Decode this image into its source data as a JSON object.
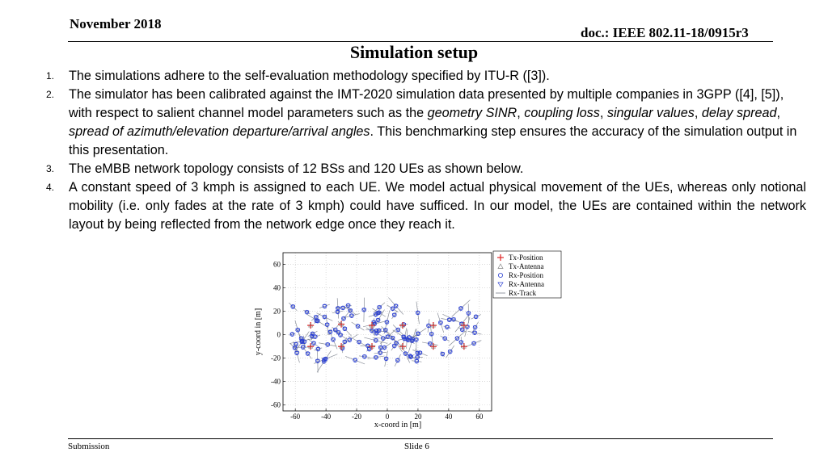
{
  "header": {
    "date": "November 2018",
    "doc_id": "doc.: IEEE 802.11-18/0915r3"
  },
  "title": "Simulation setup",
  "items": [
    {
      "num": "1.",
      "segments": [
        {
          "text": "The simulations adhere to the self-evaluation methodology specified by ITU-R ([3]).",
          "italic": false
        }
      ]
    },
    {
      "num": "2.",
      "segments": [
        {
          "text": "The simulator has been calibrated against the IMT-2020 simulation data presented by multiple companies in 3GPP ([4], [5]), with respect to salient channel model parameters such as the ",
          "italic": false
        },
        {
          "text": "geometry SINR",
          "italic": true
        },
        {
          "text": ", ",
          "italic": false
        },
        {
          "text": "coupling loss",
          "italic": true
        },
        {
          "text": ", ",
          "italic": false
        },
        {
          "text": "singular values",
          "italic": true
        },
        {
          "text": ", ",
          "italic": false
        },
        {
          "text": "delay spread",
          "italic": true
        },
        {
          "text": ", ",
          "italic": false
        },
        {
          "text": "spread of azimuth/elevation departure/arrival angles",
          "italic": true
        },
        {
          "text": ". This benchmarking step ensures the accuracy of the simulation output in this presentation.",
          "italic": false
        }
      ]
    },
    {
      "num": "3.",
      "segments": [
        {
          "text": "The eMBB network topology consists of 12 BSs and 120 UEs as shown below.",
          "italic": false
        }
      ]
    },
    {
      "num": "4.",
      "segments": [
        {
          "text": "A constant speed of 3 kmph is assigned to each UE. We model actual physical movement of the UEs, whereas only notional mobility (i.e. only fades at the rate of 3 kmph) could have sufficed. In our model, the UEs are contained within the network layout by being reflected from the network edge once they reach it.",
          "italic": false
        }
      ]
    }
  ],
  "figure": {
    "xlabel": "x-coord in [m]",
    "ylabel": "y-coord in [m]",
    "xticks": [
      -60,
      -40,
      -20,
      0,
      20,
      40,
      60
    ],
    "yticks": [
      60,
      40,
      20,
      0,
      -20,
      -40,
      -60
    ],
    "legend": [
      "Tx-Position",
      "Tx-Antenna",
      "Rx-Position",
      "Rx-Antenna",
      "Rx-Track"
    ],
    "colors": {
      "tx": "#e03030",
      "rx": "#2a3fd0",
      "track": "#8a8f99",
      "grid": "#c8c8c8"
    },
    "tx_positions": [
      [
        -50,
        8
      ],
      [
        -30,
        9
      ],
      [
        -10,
        8
      ],
      [
        10,
        8
      ],
      [
        30,
        8
      ],
      [
        50,
        8
      ],
      [
        -50,
        -10
      ],
      [
        -30,
        -10
      ],
      [
        -10,
        -10
      ],
      [
        10,
        -10
      ],
      [
        30,
        -10
      ],
      [
        50,
        -10
      ]
    ]
  },
  "footer": {
    "left": "Submission",
    "center": "Slide 6"
  }
}
